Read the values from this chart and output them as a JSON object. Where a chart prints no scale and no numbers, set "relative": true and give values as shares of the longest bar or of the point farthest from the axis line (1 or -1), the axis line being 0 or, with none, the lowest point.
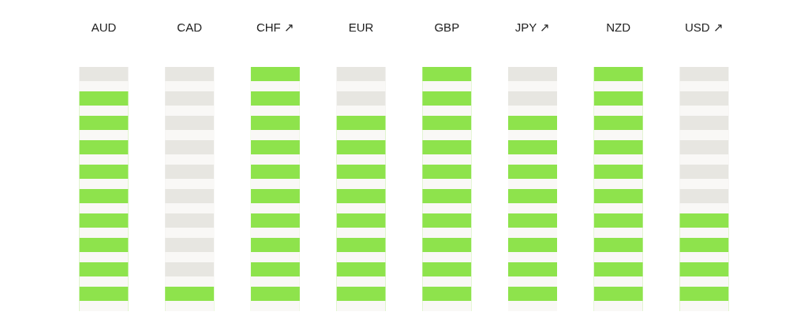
{
  "chart_data": {
    "type": "bar",
    "relative": true,
    "stacked": true,
    "categories": [
      "AUD",
      "CAD",
      "CHF ↗",
      "EUR",
      "GBP",
      "JPY ↗",
      "NZD",
      "USD ↗"
    ],
    "series": [
      {
        "color": "#8ee34c",
        "values": [
          0.9,
          0.1,
          1,
          0.8,
          1,
          0.8,
          1,
          0.4
        ]
      },
      {
        "color": "#e7e6e1",
        "values": [
          0.1,
          0.9,
          null,
          0.2,
          null,
          0.2,
          null,
          0.6
        ]
      }
    ]
  }
}
